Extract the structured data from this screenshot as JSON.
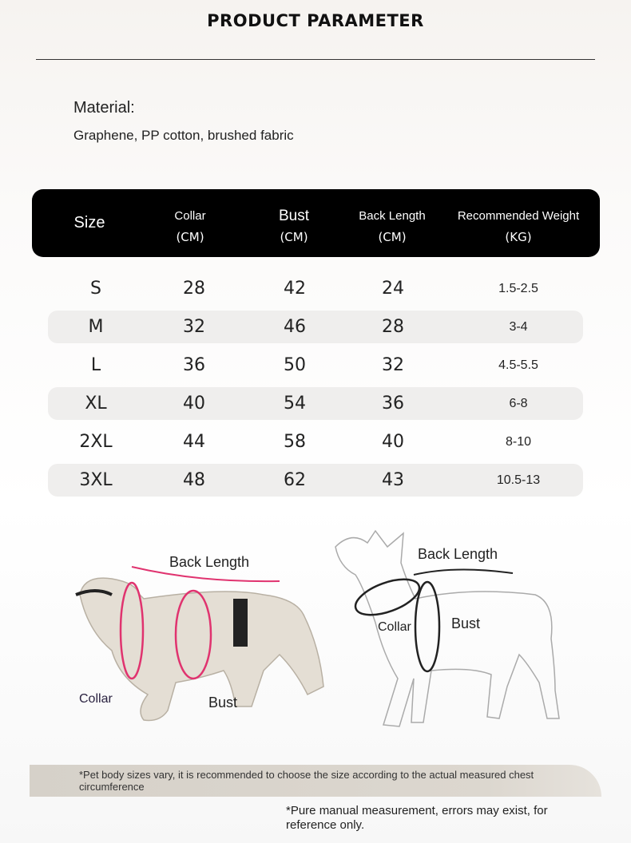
{
  "title": "PRODUCT PARAMETER",
  "material": {
    "label": "Material:",
    "value": "Graphene, PP cotton, brushed fabric"
  },
  "table": {
    "headers": [
      {
        "name": "Size",
        "unit": ""
      },
      {
        "name": "Collar",
        "unit": "(CM)"
      },
      {
        "name": "Bust",
        "unit": "(CM)"
      },
      {
        "name": "Back Length",
        "unit": "(CM)"
      },
      {
        "name": "Recommended Weight",
        "unit": "(KG)"
      }
    ],
    "rows": [
      [
        "S",
        "28",
        "42",
        "24",
        "1.5-2.5"
      ],
      [
        "M",
        "32",
        "46",
        "28",
        "3-4"
      ],
      [
        "L",
        "36",
        "50",
        "32",
        "4.5-5.5"
      ],
      [
        "XL",
        "40",
        "54",
        "36",
        "6-8"
      ],
      [
        "2XL",
        "44",
        "58",
        "40",
        "8-10"
      ],
      [
        "3XL",
        "48",
        "62",
        "43",
        "10.5-13"
      ]
    ]
  },
  "diagram_left": {
    "back_length": "Back Length",
    "collar": "Collar",
    "bust": "Bust"
  },
  "diagram_right": {
    "back_length": "Back Length",
    "collar": "Collar",
    "bust": "Bust"
  },
  "notes": {
    "note1": "*Pet body sizes vary, it is recommended to choose the size according to the actual measured chest circumference",
    "note2": "*Pure manual measurement, errors may exist, for reference only."
  },
  "colors": {
    "header_bg": "#000000",
    "row_shade": "#efeeed",
    "measure_line_left": "#e0336f",
    "measure_line_right": "#222222"
  }
}
